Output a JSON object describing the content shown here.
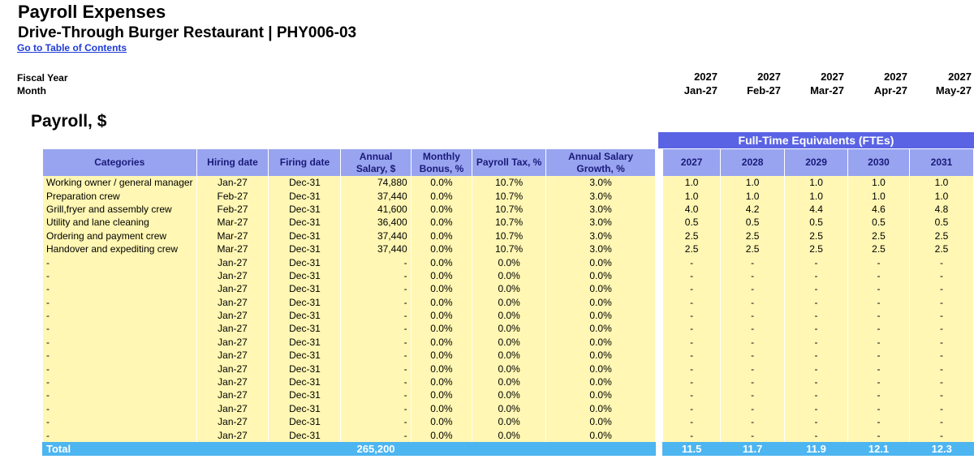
{
  "header": {
    "title": "Payroll Expenses",
    "subtitle": "Drive-Through Burger Restaurant | PHY006-03",
    "toc_link": "Go to Table of Contents"
  },
  "timeline": {
    "fiscal_year_label": "Fiscal Year",
    "month_label": "Month",
    "periods": [
      {
        "year": "2027",
        "month": "Jan-27"
      },
      {
        "year": "2027",
        "month": "Feb-27"
      },
      {
        "year": "2027",
        "month": "Mar-27"
      },
      {
        "year": "2027",
        "month": "Apr-27"
      },
      {
        "year": "2027",
        "month": "May-27"
      }
    ]
  },
  "section_title": "Payroll, $",
  "fte_banner": "Full-Time Equivalents (FTEs)",
  "columns": [
    "Categories",
    "Hiring date",
    "Firing date",
    "Annual Salary, $",
    "Monthly Bonus, %",
    "Payroll Tax, %",
    "Annual Salary Growth, %"
  ],
  "fte_years": [
    "2027",
    "2028",
    "2029",
    "2030",
    "2031"
  ],
  "rows": [
    {
      "category": "Working owner / general manager",
      "hire": "Jan-27",
      "fire": "Dec-31",
      "salary": "74,880",
      "bonus": "0.0%",
      "tax": "10.7%",
      "growth": "3.0%",
      "fte": [
        "1.0",
        "1.0",
        "1.0",
        "1.0",
        "1.0"
      ]
    },
    {
      "category": "Preparation crew",
      "hire": "Feb-27",
      "fire": "Dec-31",
      "salary": "37,440",
      "bonus": "0.0%",
      "tax": "10.7%",
      "growth": "3.0%",
      "fte": [
        "1.0",
        "1.0",
        "1.0",
        "1.0",
        "1.0"
      ]
    },
    {
      "category": "Grill,fryer and assembly crew",
      "hire": "Feb-27",
      "fire": "Dec-31",
      "salary": "41,600",
      "bonus": "0.0%",
      "tax": "10.7%",
      "growth": "3.0%",
      "fte": [
        "4.0",
        "4.2",
        "4.4",
        "4.6",
        "4.8"
      ]
    },
    {
      "category": "Utility and lane cleaning",
      "hire": "Mar-27",
      "fire": "Dec-31",
      "salary": "36,400",
      "bonus": "0.0%",
      "tax": "10.7%",
      "growth": "3.0%",
      "fte": [
        "0.5",
        "0.5",
        "0.5",
        "0.5",
        "0.5"
      ]
    },
    {
      "category": "Ordering and payment crew",
      "hire": "Mar-27",
      "fire": "Dec-31",
      "salary": "37,440",
      "bonus": "0.0%",
      "tax": "10.7%",
      "growth": "3.0%",
      "fte": [
        "2.5",
        "2.5",
        "2.5",
        "2.5",
        "2.5"
      ]
    },
    {
      "category": "Handover and expediting crew",
      "hire": "Mar-27",
      "fire": "Dec-31",
      "salary": "37,440",
      "bonus": "0.0%",
      "tax": "10.7%",
      "growth": "3.0%",
      "fte": [
        "2.5",
        "2.5",
        "2.5",
        "2.5",
        "2.5"
      ]
    },
    {
      "category": "-",
      "hire": "Jan-27",
      "fire": "Dec-31",
      "salary": "-",
      "bonus": "0.0%",
      "tax": "0.0%",
      "growth": "0.0%",
      "fte": [
        "-",
        "-",
        "-",
        "-",
        "-"
      ]
    },
    {
      "category": "-",
      "hire": "Jan-27",
      "fire": "Dec-31",
      "salary": "-",
      "bonus": "0.0%",
      "tax": "0.0%",
      "growth": "0.0%",
      "fte": [
        "-",
        "-",
        "-",
        "-",
        "-"
      ]
    },
    {
      "category": "-",
      "hire": "Jan-27",
      "fire": "Dec-31",
      "salary": "-",
      "bonus": "0.0%",
      "tax": "0.0%",
      "growth": "0.0%",
      "fte": [
        "-",
        "-",
        "-",
        "-",
        "-"
      ]
    },
    {
      "category": "-",
      "hire": "Jan-27",
      "fire": "Dec-31",
      "salary": "-",
      "bonus": "0.0%",
      "tax": "0.0%",
      "growth": "0.0%",
      "fte": [
        "-",
        "-",
        "-",
        "-",
        "-"
      ]
    },
    {
      "category": "-",
      "hire": "Jan-27",
      "fire": "Dec-31",
      "salary": "-",
      "bonus": "0.0%",
      "tax": "0.0%",
      "growth": "0.0%",
      "fte": [
        "-",
        "-",
        "-",
        "-",
        "-"
      ]
    },
    {
      "category": "-",
      "hire": "Jan-27",
      "fire": "Dec-31",
      "salary": "-",
      "bonus": "0.0%",
      "tax": "0.0%",
      "growth": "0.0%",
      "fte": [
        "-",
        "-",
        "-",
        "-",
        "-"
      ]
    },
    {
      "category": "-",
      "hire": "Jan-27",
      "fire": "Dec-31",
      "salary": "-",
      "bonus": "0.0%",
      "tax": "0.0%",
      "growth": "0.0%",
      "fte": [
        "-",
        "-",
        "-",
        "-",
        "-"
      ]
    },
    {
      "category": "-",
      "hire": "Jan-27",
      "fire": "Dec-31",
      "salary": "-",
      "bonus": "0.0%",
      "tax": "0.0%",
      "growth": "0.0%",
      "fte": [
        "-",
        "-",
        "-",
        "-",
        "-"
      ]
    },
    {
      "category": "-",
      "hire": "Jan-27",
      "fire": "Dec-31",
      "salary": "-",
      "bonus": "0.0%",
      "tax": "0.0%",
      "growth": "0.0%",
      "fte": [
        "-",
        "-",
        "-",
        "-",
        "-"
      ]
    },
    {
      "category": "-",
      "hire": "Jan-27",
      "fire": "Dec-31",
      "salary": "-",
      "bonus": "0.0%",
      "tax": "0.0%",
      "growth": "0.0%",
      "fte": [
        "-",
        "-",
        "-",
        "-",
        "-"
      ]
    },
    {
      "category": "-",
      "hire": "Jan-27",
      "fire": "Dec-31",
      "salary": "-",
      "bonus": "0.0%",
      "tax": "0.0%",
      "growth": "0.0%",
      "fte": [
        "-",
        "-",
        "-",
        "-",
        "-"
      ]
    },
    {
      "category": "-",
      "hire": "Jan-27",
      "fire": "Dec-31",
      "salary": "-",
      "bonus": "0.0%",
      "tax": "0.0%",
      "growth": "0.0%",
      "fte": [
        "-",
        "-",
        "-",
        "-",
        "-"
      ]
    },
    {
      "category": "-",
      "hire": "Jan-27",
      "fire": "Dec-31",
      "salary": "-",
      "bonus": "0.0%",
      "tax": "0.0%",
      "growth": "0.0%",
      "fte": [
        "-",
        "-",
        "-",
        "-",
        "-"
      ]
    },
    {
      "category": "-",
      "hire": "Jan-27",
      "fire": "Dec-31",
      "salary": "-",
      "bonus": "0.0%",
      "tax": "0.0%",
      "growth": "0.0%",
      "fte": [
        "-",
        "-",
        "-",
        "-",
        "-"
      ]
    }
  ],
  "total": {
    "label": "Total",
    "salary": "265,200",
    "fte": [
      "11.5",
      "11.7",
      "11.9",
      "12.1",
      "12.3"
    ]
  },
  "colors": {
    "header_bg": "#98a4f0",
    "banner_bg": "#5a63e4",
    "cell_bg": "#fff7b3",
    "total_bg": "#4db5f0",
    "link": "#1e3cd6"
  }
}
